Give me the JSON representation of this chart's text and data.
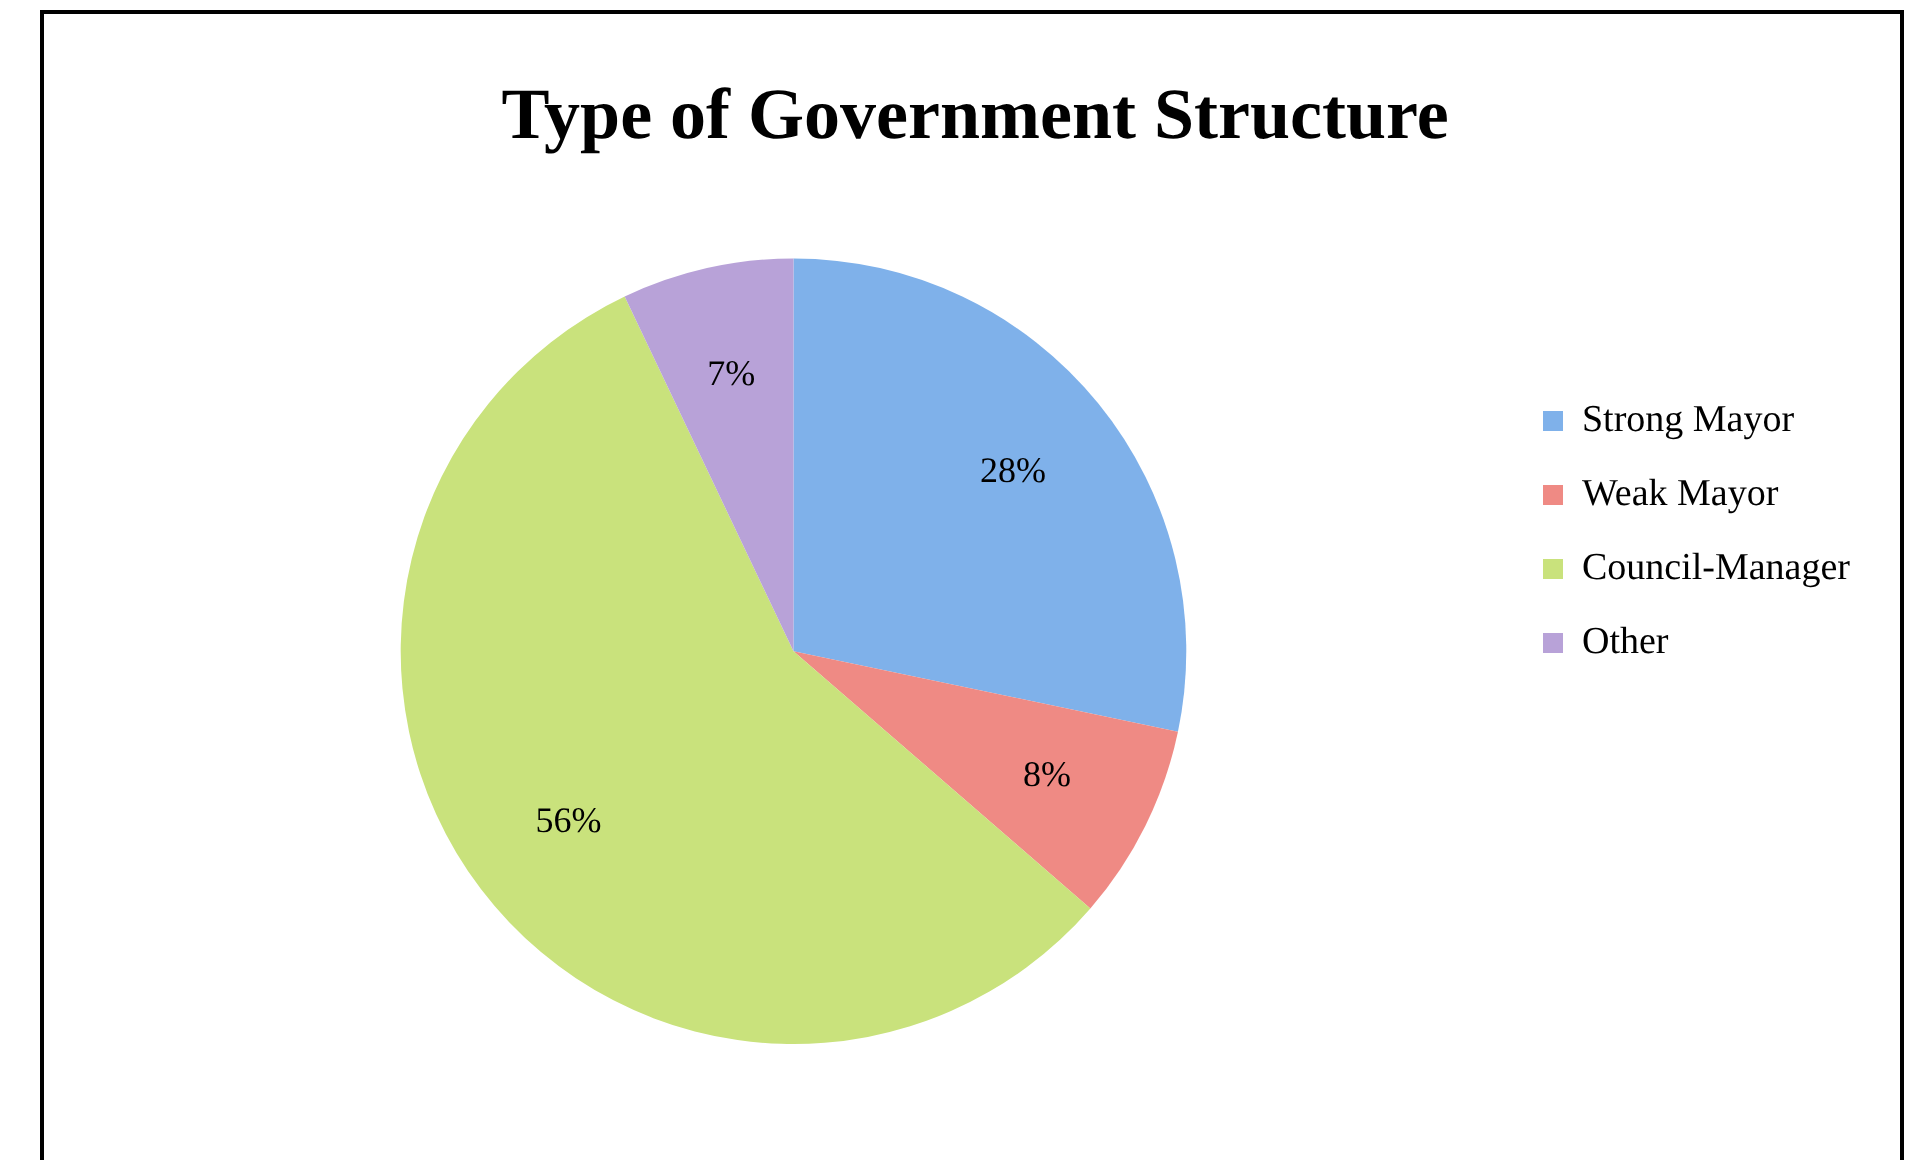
{
  "chart_data": {
    "type": "pie",
    "title": "Type of Government Structure",
    "categories": [
      "Strong Mayor",
      "Weak Mayor",
      "Council-Manager",
      "Other"
    ],
    "values": [
      28,
      8,
      56,
      7
    ],
    "colors": [
      "#7fb1ea",
      "#ef8a84",
      "#c9e27c",
      "#b8a2d8"
    ],
    "value_labels": [
      "28%",
      "8%",
      "56%",
      "7%"
    ],
    "legend": "right"
  }
}
